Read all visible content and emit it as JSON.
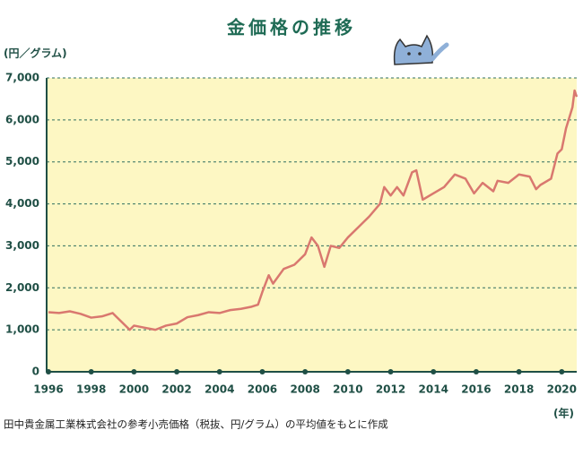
{
  "chart_data": {
    "type": "line",
    "title": "金価格の推移",
    "y_label": "(円／グラム)",
    "x_label": "(年)",
    "note": "田中貴金属工業株式会社の参考小売価格（税抜、円/グラム）の平均値をもとに作成",
    "grid": true,
    "xlim": [
      1996,
      2020.7
    ],
    "ylim": [
      0,
      7000
    ],
    "xticks": [
      1996,
      1998,
      2000,
      2002,
      2004,
      2006,
      2008,
      2010,
      2012,
      2014,
      2016,
      2018,
      2020
    ],
    "yticks": [
      0,
      {
        "value": 1000,
        "label": "1,000"
      },
      {
        "value": 2000,
        "label": "2,000"
      },
      {
        "value": 3000,
        "label": "3,000"
      },
      {
        "value": 4000,
        "label": "4,000"
      },
      {
        "value": 5000,
        "label": "5,000"
      },
      {
        "value": 6000,
        "label": "6,000"
      },
      {
        "value": 7000,
        "label": "7,000"
      }
    ],
    "x": [
      1996.0,
      1996.5,
      1997.0,
      1997.5,
      1998.0,
      1998.5,
      1999.0,
      1999.5,
      1999.8,
      2000.0,
      2000.5,
      2001.0,
      2001.5,
      2002.0,
      2002.5,
      2003.0,
      2003.5,
      2004.0,
      2004.5,
      2005.0,
      2005.5,
      2005.8,
      2006.0,
      2006.3,
      2006.5,
      2007.0,
      2007.5,
      2008.0,
      2008.3,
      2008.6,
      2008.9,
      2009.2,
      2009.6,
      2010.0,
      2010.5,
      2011.0,
      2011.5,
      2011.7,
      2012.0,
      2012.3,
      2012.6,
      2013.0,
      2013.2,
      2013.5,
      2014.0,
      2014.5,
      2015.0,
      2015.5,
      2015.9,
      2016.3,
      2016.8,
      2017.0,
      2017.5,
      2018.0,
      2018.5,
      2018.8,
      2019.0,
      2019.5,
      2019.8,
      2020.0,
      2020.2,
      2020.5,
      2020.6,
      2020.7
    ],
    "series": [
      {
        "color": "#d9786f",
        "values": [
          1420,
          1400,
          1440,
          1380,
          1290,
          1320,
          1400,
          1150,
          1000,
          1100,
          1050,
          1000,
          1100,
          1150,
          1300,
          1350,
          1420,
          1400,
          1470,
          1500,
          1550,
          1600,
          1900,
          2300,
          2100,
          2450,
          2550,
          2800,
          3200,
          3000,
          2500,
          3000,
          2950,
          3200,
          3450,
          3700,
          4000,
          4400,
          4200,
          4400,
          4200,
          4750,
          4800,
          4100,
          4250,
          4400,
          4700,
          4600,
          4250,
          4500,
          4300,
          4550,
          4500,
          4700,
          4650,
          4350,
          4450,
          4600,
          5200,
          5300,
          5800,
          6300,
          6700,
          6550
        ]
      }
    ]
  }
}
